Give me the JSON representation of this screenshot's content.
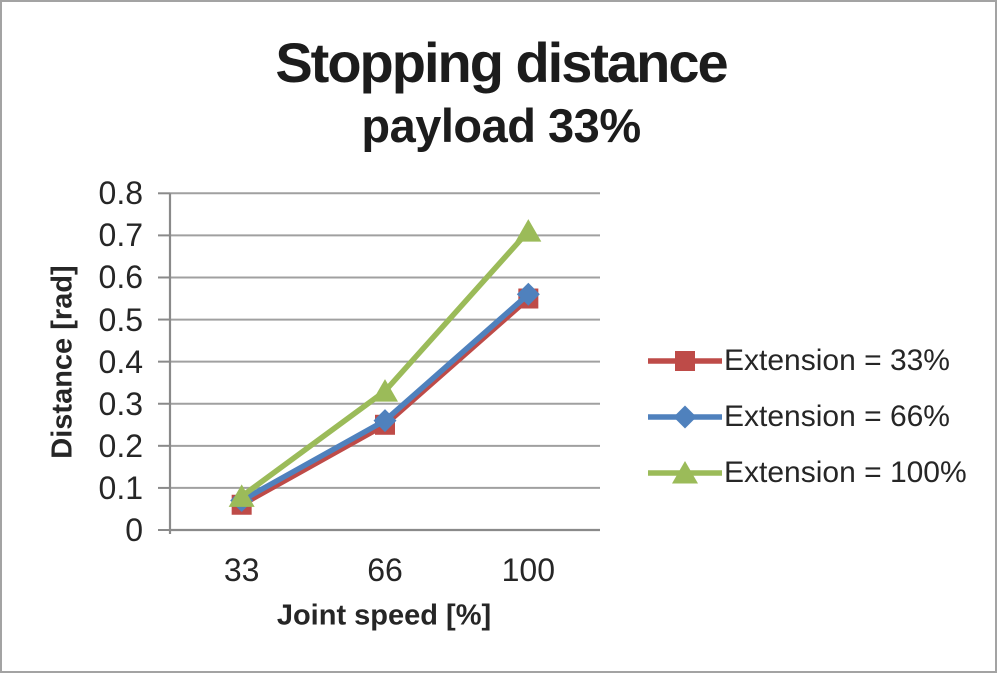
{
  "chart_data": {
    "type": "line",
    "title": "Stopping distance",
    "subtitle": "payload 33%",
    "xlabel": "Joint speed [%]",
    "ylabel": "Distance [rad]",
    "categories": [
      "33",
      "66",
      "100"
    ],
    "y_ticks": [
      "0",
      "0.1",
      "0.2",
      "0.3",
      "0.4",
      "0.5",
      "0.6",
      "0.7",
      "0.8"
    ],
    "ylim": [
      0,
      0.8
    ],
    "grid": true,
    "legend_position": "right",
    "series": [
      {
        "name": "Extension = 33%",
        "marker": "square",
        "color": "#BE4B48",
        "values": [
          0.06,
          0.25,
          0.55
        ]
      },
      {
        "name": "Extension = 66%",
        "marker": "diamond",
        "color": "#4F81BD",
        "values": [
          0.07,
          0.26,
          0.56
        ]
      },
      {
        "name": "Extension = 100%",
        "marker": "triangle",
        "color": "#9BBB59",
        "values": [
          0.08,
          0.33,
          0.71
        ]
      }
    ]
  }
}
